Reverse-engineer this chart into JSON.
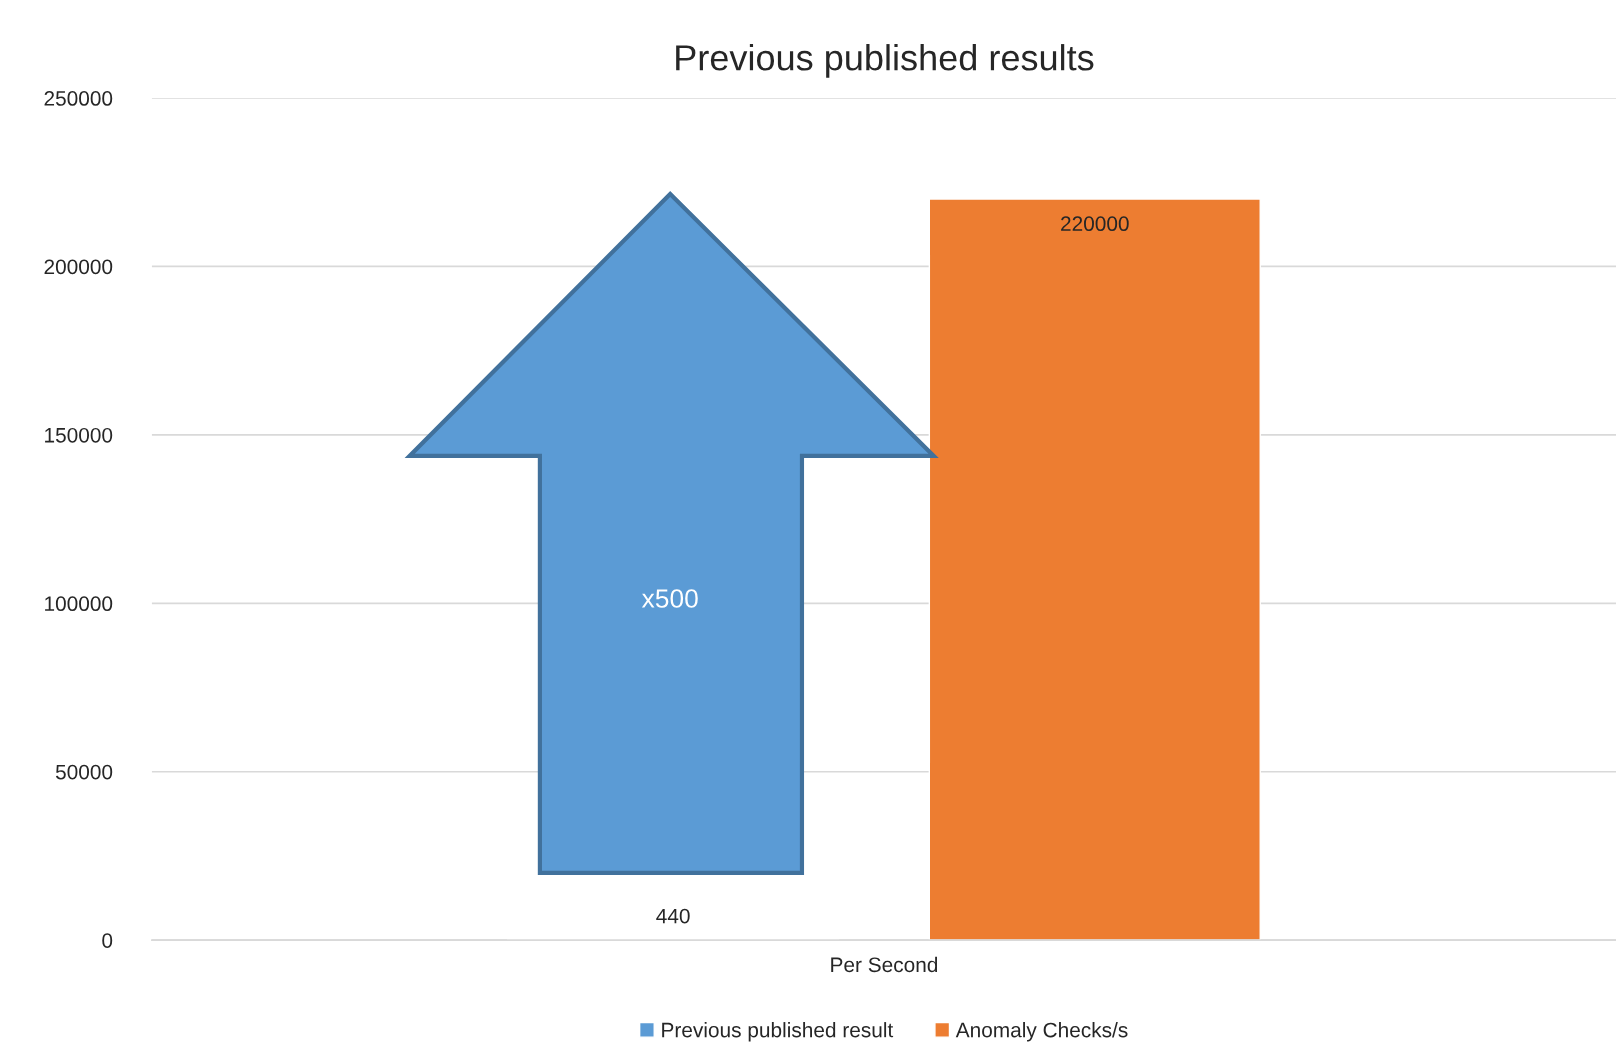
{
  "chart_data": {
    "type": "bar",
    "title": "Previous published results",
    "categories": [
      "Per Second"
    ],
    "series": [
      {
        "name": "Previous published result",
        "color": "#5b9bd5",
        "values": [
          440
        ]
      },
      {
        "name": "Anomaly Checks/s",
        "color": "#ed7d31",
        "values": [
          220000
        ]
      }
    ],
    "ylim": [
      0,
      250000
    ],
    "yticks": [
      0,
      50000,
      100000,
      150000,
      200000,
      250000
    ],
    "grid": "y",
    "legend": "bottom",
    "data_labels": true,
    "annotations": [
      "x500"
    ]
  }
}
